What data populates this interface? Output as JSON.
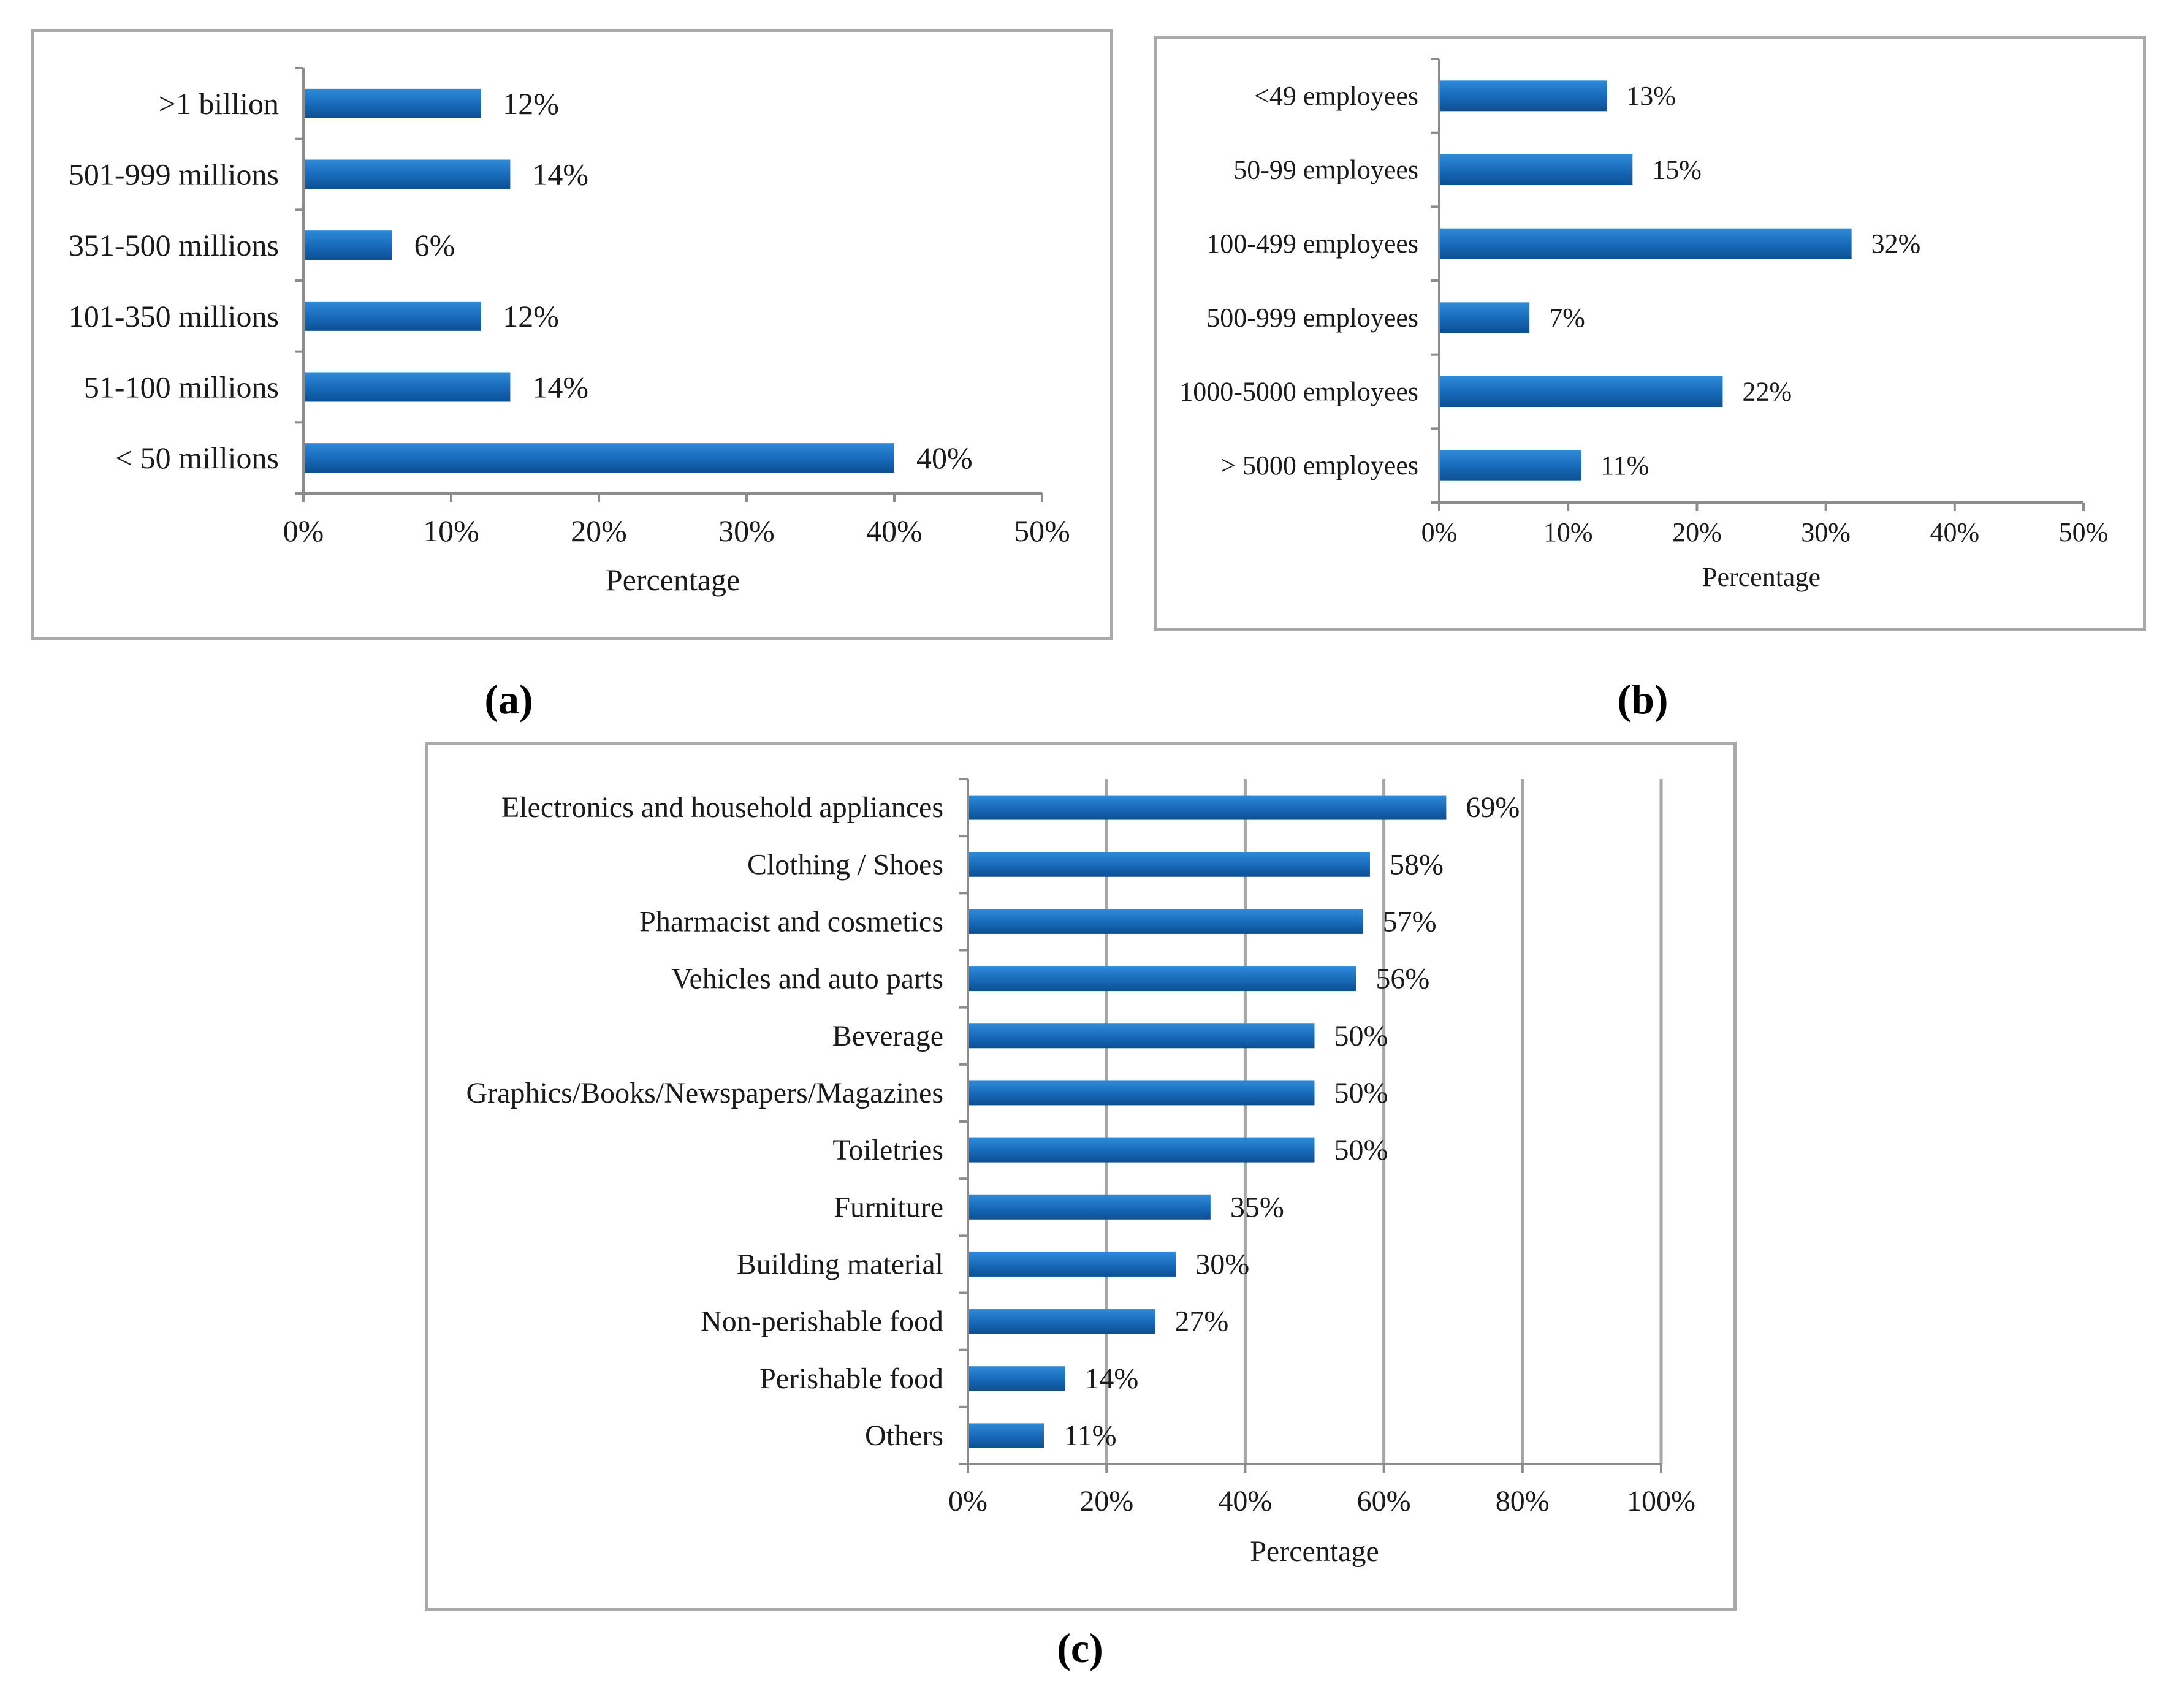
{
  "figure": {
    "panel_labels": {
      "a": "(a)",
      "b": "(b)",
      "c": "(c)"
    }
  },
  "colors": {
    "bar": "#1769b8",
    "bar_light": "#2f8ad8",
    "bar_dark": "#0d4f92",
    "axis": "#8c8c8c",
    "frame": "#a9a9a9",
    "text": "#1a1a1a"
  },
  "chart_data": [
    {
      "id": "a",
      "type": "bar",
      "orientation": "horizontal",
      "categories": [
        ">1 billion",
        "501-999 millions",
        "351-500 millions",
        "101-350 millions",
        "51-100 millions",
        "< 50 millions"
      ],
      "values": [
        12,
        14,
        6,
        12,
        14,
        40
      ],
      "value_labels": [
        "12%",
        "14%",
        "6%",
        "12%",
        "14%",
        "40%"
      ],
      "xlabel": "Percentage",
      "ylabel": "",
      "xlim": [
        0,
        50
      ],
      "ticks": [
        0,
        10,
        20,
        30,
        40,
        50
      ],
      "tick_labels": [
        "0%",
        "10%",
        "20%",
        "30%",
        "40%",
        "50%"
      ],
      "grid": false
    },
    {
      "id": "b",
      "type": "bar",
      "orientation": "horizontal",
      "categories": [
        "<49 employees",
        "50-99 employees",
        "100-499 employees",
        "500-999 employees",
        "1000-5000 employees",
        "> 5000 employees"
      ],
      "values": [
        13,
        15,
        32,
        7,
        22,
        11
      ],
      "value_labels": [
        "13%",
        "15%",
        "32%",
        "7%",
        "22%",
        "11%"
      ],
      "xlabel": "Percentage",
      "ylabel": "",
      "xlim": [
        0,
        50
      ],
      "ticks": [
        0,
        10,
        20,
        30,
        40,
        50
      ],
      "tick_labels": [
        "0%",
        "10%",
        "20%",
        "30%",
        "40%",
        "50%"
      ],
      "grid": false
    },
    {
      "id": "c",
      "type": "bar",
      "orientation": "horizontal",
      "categories": [
        "Electronics and household appliances",
        "Clothing / Shoes",
        "Pharmacist and cosmetics",
        "Vehicles and auto parts",
        "Beverage",
        "Graphics/Books/Newspapers/Magazines",
        "Toiletries",
        "Furniture",
        "Building material",
        "Non-perishable food",
        "Perishable food",
        "Others"
      ],
      "values": [
        69,
        58,
        57,
        56,
        50,
        50,
        50,
        35,
        30,
        27,
        14,
        11
      ],
      "value_labels": [
        "69%",
        "58%",
        "57%",
        "56%",
        "50%",
        "50%",
        "50%",
        "35%",
        "30%",
        "27%",
        "14%",
        "11%"
      ],
      "xlabel": "Percentage",
      "ylabel": "",
      "xlim": [
        0,
        100
      ],
      "ticks": [
        0,
        20,
        40,
        60,
        80,
        100
      ],
      "tick_labels": [
        "0%",
        "20%",
        "40%",
        "60%",
        "80%",
        "100%"
      ],
      "grid": true
    }
  ]
}
